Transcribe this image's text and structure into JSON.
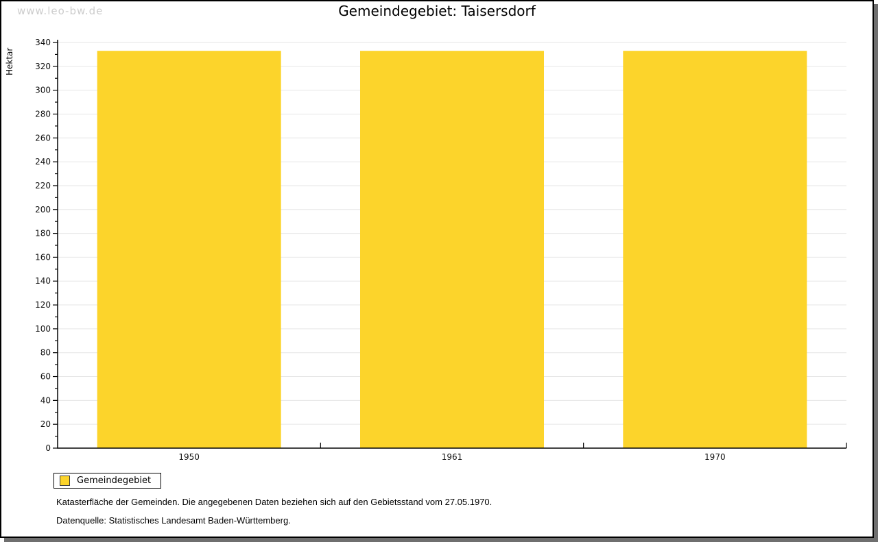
{
  "watermark": "www.leo-bw.de",
  "chart_data": {
    "type": "bar",
    "title": "Gemeindegebiet: Taisersdorf",
    "ylabel": "Hektar",
    "xlabel": "",
    "categories": [
      "1950",
      "1961",
      "1970"
    ],
    "series": [
      {
        "name": "Gemeindegebiet",
        "values": [
          333,
          333,
          333
        ],
        "color": "#FCD42B"
      }
    ],
    "ylim": [
      0,
      340
    ],
    "y_major_step": 20,
    "y_minor_step": 10,
    "grid": "horizontal-major-lines",
    "legend_position": "bottom-left"
  },
  "legend": {
    "items": [
      {
        "label": "Gemeindegebiet",
        "color": "#FCD42B"
      }
    ]
  },
  "footnotes": [
    "Katasterfläche der Gemeinden. Die angegebenen Daten beziehen sich auf den Gebietsstand vom 27.05.1970.",
    "Datenquelle: Statistisches Landesamt Baden-Württemberg."
  ],
  "colors": {
    "bar": "#FCD42B",
    "grid": "#e6e6e6",
    "axis": "#000000",
    "watermark": "#cccccc",
    "shadow": "#6f6f6f"
  }
}
